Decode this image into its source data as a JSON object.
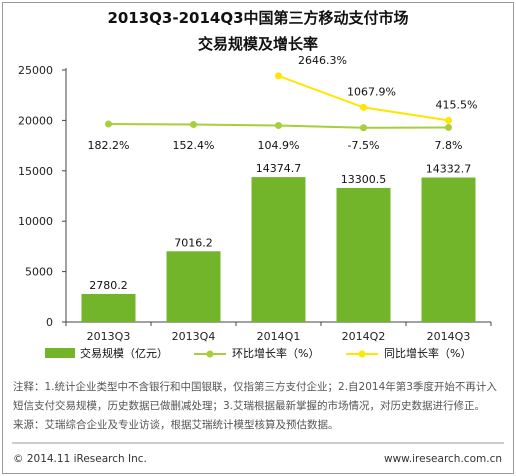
{
  "chart_data": {
    "type": "bar",
    "title": "2013Q3-2014Q3中国第三方移动支付市场",
    "subtitle": "交易规模及增长率",
    "categories": [
      "2013Q3",
      "2013Q4",
      "2014Q1",
      "2014Q2",
      "2014Q3"
    ],
    "ylim": [
      0,
      25000
    ],
    "yticks": [
      0,
      5000,
      10000,
      15000,
      20000,
      25000
    ],
    "grid": false,
    "legend_position": "bottom",
    "colors": {
      "bar": "#72b52a",
      "qoq": "#a6cf3c",
      "yoy": "#ffe600"
    },
    "series": [
      {
        "name": "交易规模（亿元）",
        "type": "bar",
        "values": [
          2780.2,
          7016.2,
          14374.7,
          13300.5,
          14332.7
        ],
        "labels": [
          "2780.2",
          "7016.2",
          "14374.7",
          "13300.5",
          "14332.7"
        ]
      },
      {
        "name": "环比增长率（%）",
        "type": "line",
        "values": [
          182.2,
          152.4,
          104.9,
          -7.5,
          7.8
        ],
        "labels": [
          "182.2%",
          "152.4%",
          "104.9%",
          "-7.5%",
          "7.8%"
        ]
      },
      {
        "name": "同比增长率（%）",
        "type": "line",
        "values": [
          null,
          null,
          2646.3,
          1067.9,
          415.5
        ],
        "labels": [
          "",
          "",
          "2646.3%",
          "1067.9%",
          "415.5%"
        ]
      }
    ]
  },
  "notes": [
    "注释：1.统计企业类型中不含银行和中国银联，仅指第三方支付企业；2.自2014年第3季度开始不再计入",
    "短信支付交易规模，历史数据已做删减处理；3.艾瑞根据最新掌握的市场情况，对历史数据进行修正。",
    "来源：艾瑞综合企业及专业访谈，根据艾瑞统计模型核算及预估数据。"
  ],
  "footer": {
    "copyright": "© 2014.11 iResearch Inc.",
    "website": "www.iresearch.com.cn"
  }
}
